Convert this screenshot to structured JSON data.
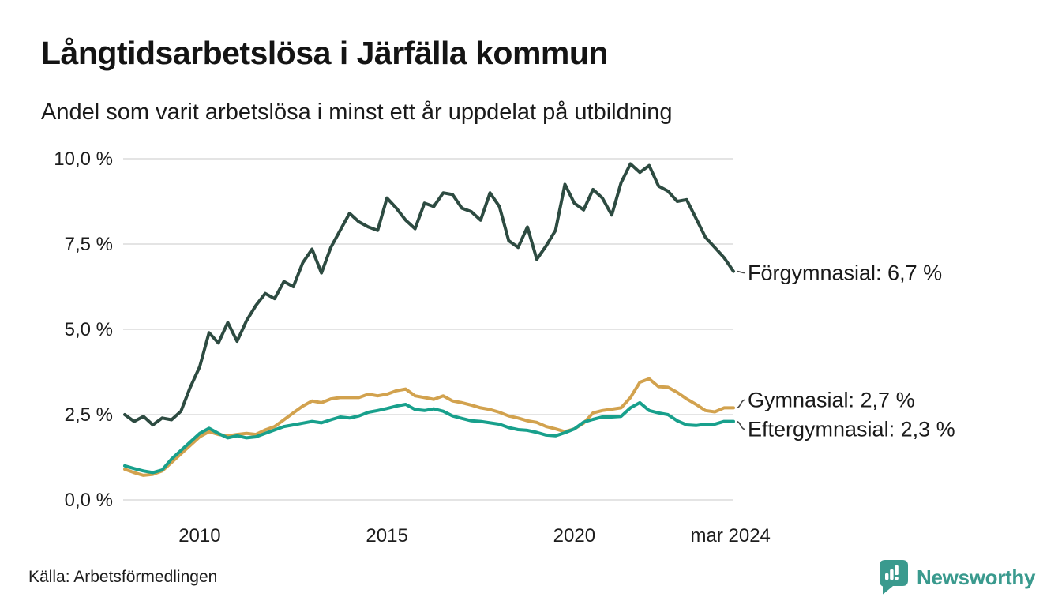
{
  "header": {
    "title": "Långtidsarbetslösa i Järfälla kommun",
    "subtitle": "Andel som varit arbetslösa i minst ett år uppdelat på utbildning"
  },
  "footer": {
    "source": "Källa: Arbetsförmedlingen",
    "brand": "Newsworthy",
    "brand_icon": "newsworthy-bubble-bar-chart-icon",
    "brand_color": "#3a9a8e"
  },
  "colors": {
    "grid": "#e4e4e4",
    "axis_text": "#1d1d1d",
    "label_text": "#1a1a1a",
    "connector": "#4a4a4a"
  },
  "chart_data": {
    "type": "line",
    "title": "Långtidsarbetslösa i Järfälla kommun",
    "subtitle": "Andel som varit arbetslösa i minst ett år uppdelat på utbildning",
    "xlabel": "",
    "ylabel": "",
    "x_unit": "decimal_year",
    "xlim": [
      2008.0,
      2024.25
    ],
    "ylim": [
      0,
      10
    ],
    "grid": "horizontal",
    "legend_position": "right-end-labels",
    "yticks": [
      {
        "value": 0,
        "label": "0,0 %"
      },
      {
        "value": 2.5,
        "label": "2,5 %"
      },
      {
        "value": 5,
        "label": "5,0 %"
      },
      {
        "value": 7.5,
        "label": "7,5 %"
      },
      {
        "value": 10,
        "label": "10,0 %"
      }
    ],
    "xticks": [
      {
        "value": 2010,
        "label": "2010"
      },
      {
        "value": 2015,
        "label": "2015"
      },
      {
        "value": 2020,
        "label": "2020"
      },
      {
        "value": 2024.17,
        "label": "mar 2024"
      }
    ],
    "x": [
      2008.0,
      2008.25,
      2008.5,
      2008.75,
      2009.0,
      2009.25,
      2009.5,
      2009.75,
      2010.0,
      2010.25,
      2010.5,
      2010.75,
      2011.0,
      2011.25,
      2011.5,
      2011.75,
      2012.0,
      2012.25,
      2012.5,
      2012.75,
      2013.0,
      2013.25,
      2013.5,
      2013.75,
      2014.0,
      2014.25,
      2014.5,
      2014.75,
      2015.0,
      2015.25,
      2015.5,
      2015.75,
      2016.0,
      2016.25,
      2016.5,
      2016.75,
      2017.0,
      2017.25,
      2017.5,
      2017.75,
      2018.0,
      2018.25,
      2018.5,
      2018.75,
      2019.0,
      2019.25,
      2019.5,
      2019.75,
      2020.0,
      2020.25,
      2020.5,
      2020.75,
      2021.0,
      2021.25,
      2021.5,
      2021.75,
      2022.0,
      2022.25,
      2022.5,
      2022.75,
      2023.0,
      2023.25,
      2023.5,
      2023.75,
      2024.0,
      2024.25
    ],
    "series": [
      {
        "name": "Förgymnasial",
        "end_label": "Förgymnasial: 6,7 %",
        "end_value": "6,7 %",
        "color": "#2d4b41",
        "values": [
          2.5,
          2.3,
          2.45,
          2.2,
          2.4,
          2.35,
          2.6,
          3.3,
          3.9,
          4.9,
          4.6,
          5.2,
          4.65,
          5.25,
          5.7,
          6.05,
          5.9,
          6.4,
          6.25,
          6.95,
          7.35,
          6.65,
          7.4,
          7.9,
          8.4,
          8.15,
          8.0,
          7.9,
          8.85,
          8.55,
          8.2,
          7.95,
          8.7,
          8.6,
          9.0,
          8.95,
          8.55,
          8.45,
          8.2,
          9.0,
          8.6,
          7.6,
          7.4,
          8.0,
          7.05,
          7.45,
          7.9,
          9.25,
          8.7,
          8.5,
          9.1,
          8.85,
          8.35,
          9.3,
          9.85,
          9.6,
          9.8,
          9.2,
          9.05,
          8.75,
          8.8,
          8.25,
          7.7,
          7.4,
          7.1,
          6.7
        ]
      },
      {
        "name": "Gymnasial",
        "end_label": "Gymnasial: 2,7 %",
        "end_value": "2,7 %",
        "color": "#d2a24e",
        "values": [
          0.9,
          0.8,
          0.72,
          0.75,
          0.85,
          1.1,
          1.35,
          1.6,
          1.85,
          2.0,
          1.92,
          1.88,
          1.92,
          1.95,
          1.92,
          2.05,
          2.15,
          2.35,
          2.55,
          2.75,
          2.9,
          2.85,
          2.96,
          3.0,
          3.0,
          3.0,
          3.1,
          3.05,
          3.1,
          3.2,
          3.25,
          3.05,
          3.0,
          2.95,
          3.05,
          2.9,
          2.85,
          2.78,
          2.7,
          2.65,
          2.57,
          2.46,
          2.4,
          2.32,
          2.27,
          2.15,
          2.08,
          2.0,
          2.08,
          2.25,
          2.55,
          2.62,
          2.66,
          2.7,
          3.0,
          3.45,
          3.55,
          3.32,
          3.3,
          3.15,
          2.96,
          2.8,
          2.62,
          2.58,
          2.7,
          2.7
        ]
      },
      {
        "name": "Eftergymnasial",
        "end_label": "Eftergymnasial: 2,3 %",
        "end_value": "2,3 %",
        "color": "#18a08c",
        "values": [
          1.0,
          0.92,
          0.85,
          0.8,
          0.88,
          1.2,
          1.45,
          1.7,
          1.95,
          2.1,
          1.95,
          1.82,
          1.88,
          1.82,
          1.85,
          1.95,
          2.05,
          2.15,
          2.2,
          2.25,
          2.3,
          2.26,
          2.35,
          2.43,
          2.4,
          2.46,
          2.57,
          2.62,
          2.68,
          2.75,
          2.8,
          2.65,
          2.62,
          2.67,
          2.6,
          2.46,
          2.39,
          2.32,
          2.3,
          2.26,
          2.22,
          2.12,
          2.06,
          2.04,
          1.98,
          1.9,
          1.88,
          1.97,
          2.08,
          2.28,
          2.36,
          2.43,
          2.43,
          2.45,
          2.7,
          2.85,
          2.62,
          2.55,
          2.5,
          2.32,
          2.2,
          2.18,
          2.22,
          2.22,
          2.3,
          2.3
        ]
      }
    ]
  }
}
